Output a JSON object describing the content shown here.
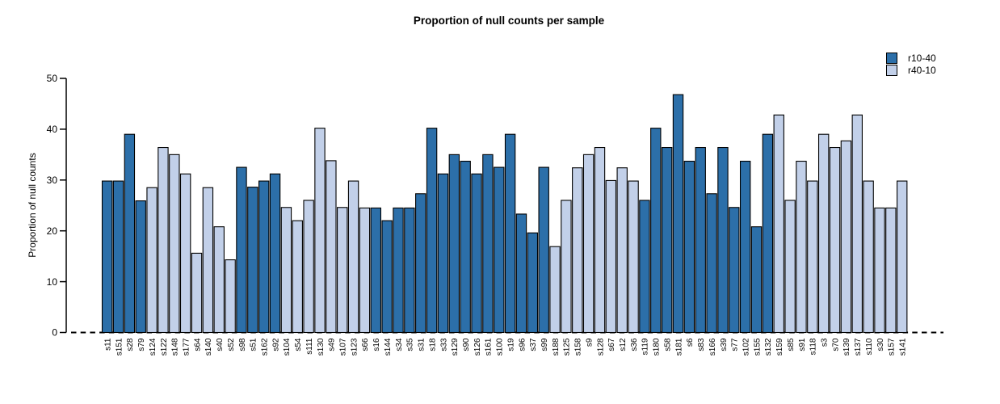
{
  "chart_data": {
    "type": "bar",
    "title": "Proportion of null counts per sample",
    "xlabel": "",
    "ylabel": "Proportion of null counts",
    "ylim": [
      0,
      50
    ],
    "yticks": [
      0,
      10,
      20,
      30,
      40,
      50
    ],
    "grid": false,
    "legend_position": "top-right",
    "baseline_style": "dashed",
    "colors": {
      "bar_border": "#000000",
      "axis": "#000000",
      "text": "#000000"
    },
    "legend": [
      {
        "label": "r10-40",
        "color": "#2C6FA9"
      },
      {
        "label": "r40-10",
        "color": "#C2D0E9"
      }
    ],
    "bars": [
      {
        "sample": "s11",
        "series": "r10-40",
        "value": 29.8
      },
      {
        "sample": "s151",
        "series": "r10-40",
        "value": 29.8
      },
      {
        "sample": "s28",
        "series": "r10-40",
        "value": 39.0
      },
      {
        "sample": "s79",
        "series": "r10-40",
        "value": 25.9
      },
      {
        "sample": "s124",
        "series": "r40-10",
        "value": 28.5
      },
      {
        "sample": "s122",
        "series": "r40-10",
        "value": 36.4
      },
      {
        "sample": "s148",
        "series": "r40-10",
        "value": 35.0
      },
      {
        "sample": "s177",
        "series": "r40-10",
        "value": 31.2
      },
      {
        "sample": "s64",
        "series": "r40-10",
        "value": 15.6
      },
      {
        "sample": "s140",
        "series": "r40-10",
        "value": 28.5
      },
      {
        "sample": "s40",
        "series": "r40-10",
        "value": 20.8
      },
      {
        "sample": "s52",
        "series": "r40-10",
        "value": 14.3
      },
      {
        "sample": "s98",
        "series": "r10-40",
        "value": 32.5
      },
      {
        "sample": "s51",
        "series": "r10-40",
        "value": 28.6
      },
      {
        "sample": "s162",
        "series": "r10-40",
        "value": 29.8
      },
      {
        "sample": "s92",
        "series": "r10-40",
        "value": 31.2
      },
      {
        "sample": "s104",
        "series": "r40-10",
        "value": 24.6
      },
      {
        "sample": "s54",
        "series": "r40-10",
        "value": 22.0
      },
      {
        "sample": "s111",
        "series": "r40-10",
        "value": 26.0
      },
      {
        "sample": "s130",
        "series": "r40-10",
        "value": 40.2
      },
      {
        "sample": "s49",
        "series": "r40-10",
        "value": 33.8
      },
      {
        "sample": "s107",
        "series": "r40-10",
        "value": 24.6
      },
      {
        "sample": "s123",
        "series": "r40-10",
        "value": 29.8
      },
      {
        "sample": "s66",
        "series": "r40-10",
        "value": 24.5
      },
      {
        "sample": "s16",
        "series": "r10-40",
        "value": 24.5
      },
      {
        "sample": "s144",
        "series": "r10-40",
        "value": 22.0
      },
      {
        "sample": "s34",
        "series": "r10-40",
        "value": 24.5
      },
      {
        "sample": "s35",
        "series": "r10-40",
        "value": 24.5
      },
      {
        "sample": "s31",
        "series": "r10-40",
        "value": 27.3
      },
      {
        "sample": "s18",
        "series": "r10-40",
        "value": 40.2
      },
      {
        "sample": "s33",
        "series": "r10-40",
        "value": 31.2
      },
      {
        "sample": "s129",
        "series": "r10-40",
        "value": 35.0
      },
      {
        "sample": "s90",
        "series": "r10-40",
        "value": 33.7
      },
      {
        "sample": "s126",
        "series": "r10-40",
        "value": 31.2
      },
      {
        "sample": "s161",
        "series": "r10-40",
        "value": 35.0
      },
      {
        "sample": "s100",
        "series": "r10-40",
        "value": 32.5
      },
      {
        "sample": "s19",
        "series": "r10-40",
        "value": 39.0
      },
      {
        "sample": "s96",
        "series": "r10-40",
        "value": 23.3
      },
      {
        "sample": "s37",
        "series": "r10-40",
        "value": 19.6
      },
      {
        "sample": "s99",
        "series": "r10-40",
        "value": 32.5
      },
      {
        "sample": "s188",
        "series": "r40-10",
        "value": 16.9
      },
      {
        "sample": "s125",
        "series": "r40-10",
        "value": 26.0
      },
      {
        "sample": "s158",
        "series": "r40-10",
        "value": 32.4
      },
      {
        "sample": "s9",
        "series": "r40-10",
        "value": 35.0
      },
      {
        "sample": "s128",
        "series": "r40-10",
        "value": 36.4
      },
      {
        "sample": "s67",
        "series": "r40-10",
        "value": 29.9
      },
      {
        "sample": "s12",
        "series": "r40-10",
        "value": 32.4
      },
      {
        "sample": "s36",
        "series": "r40-10",
        "value": 29.8
      },
      {
        "sample": "s119",
        "series": "r10-40",
        "value": 26.0
      },
      {
        "sample": "s180",
        "series": "r10-40",
        "value": 40.2
      },
      {
        "sample": "s58",
        "series": "r10-40",
        "value": 36.4
      },
      {
        "sample": "s181",
        "series": "r10-40",
        "value": 46.8
      },
      {
        "sample": "s6",
        "series": "r10-40",
        "value": 33.7
      },
      {
        "sample": "s83",
        "series": "r10-40",
        "value": 36.4
      },
      {
        "sample": "s166",
        "series": "r10-40",
        "value": 27.3
      },
      {
        "sample": "s39",
        "series": "r10-40",
        "value": 36.4
      },
      {
        "sample": "s77",
        "series": "r10-40",
        "value": 24.6
      },
      {
        "sample": "s102",
        "series": "r10-40",
        "value": 33.7
      },
      {
        "sample": "s155",
        "series": "r10-40",
        "value": 20.8
      },
      {
        "sample": "s132",
        "series": "r10-40",
        "value": 39.0
      },
      {
        "sample": "s159",
        "series": "r40-10",
        "value": 42.8
      },
      {
        "sample": "s85",
        "series": "r40-10",
        "value": 26.0
      },
      {
        "sample": "s91",
        "series": "r40-10",
        "value": 33.7
      },
      {
        "sample": "s118",
        "series": "r40-10",
        "value": 29.8
      },
      {
        "sample": "s3",
        "series": "r40-10",
        "value": 39.0
      },
      {
        "sample": "s70",
        "series": "r40-10",
        "value": 36.4
      },
      {
        "sample": "s139",
        "series": "r40-10",
        "value": 37.7
      },
      {
        "sample": "s137",
        "series": "r40-10",
        "value": 42.8
      },
      {
        "sample": "s110",
        "series": "r40-10",
        "value": 29.8
      },
      {
        "sample": "s30",
        "series": "r40-10",
        "value": 24.5
      },
      {
        "sample": "s157",
        "series": "r40-10",
        "value": 24.5
      },
      {
        "sample": "s141",
        "series": "r40-10",
        "value": 29.8
      }
    ]
  }
}
